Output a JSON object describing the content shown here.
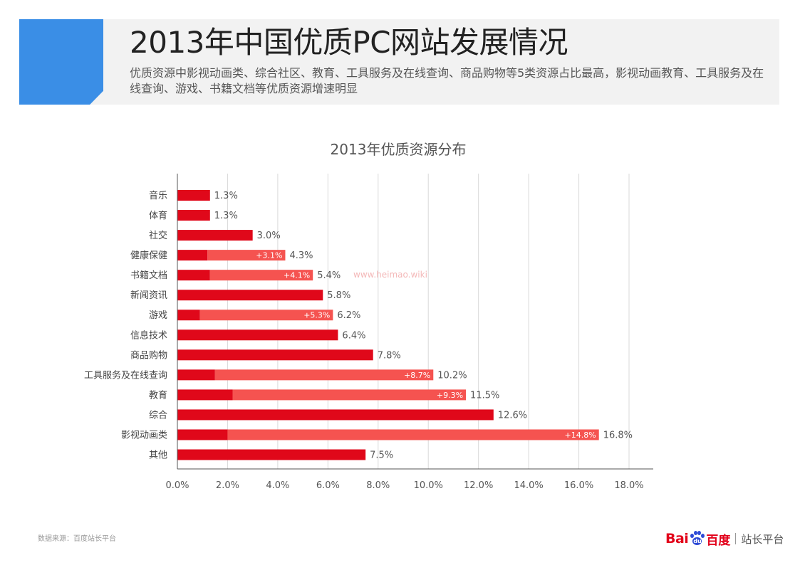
{
  "header": {
    "title": "2013年中国优质PC网站发展情况",
    "subtitle": "优质资源中影视动画类、综合社区、教育、工具服务及在线查询、商品购物等5类资源占比最高，影视动画教育、工具服务及在线查询、游戏、书籍文档等优质资源增速明显"
  },
  "colors": {
    "accent": "#3a8ee6",
    "bar_base": "#e0081a",
    "bar_increase": "#f55350",
    "header_bg": "#f2f2f2"
  },
  "chart_data": {
    "type": "bar",
    "orientation": "horizontal",
    "stacked": true,
    "title": "2013年优质资源分布",
    "xlabel": "",
    "ylabel": "",
    "xlim": [
      0,
      18
    ],
    "x_ticks": [
      "0.0%",
      "2.0%",
      "4.0%",
      "6.0%",
      "8.0%",
      "10.0%",
      "12.0%",
      "14.0%",
      "16.0%",
      "18.0%"
    ],
    "grid": "vertical",
    "legend": "none",
    "categories": [
      "音乐",
      "体育",
      "社交",
      "健康保健",
      "书籍文档",
      "新闻资讯",
      "游戏",
      "信息技术",
      "商品购物",
      "工具服务及在线查询",
      "教育",
      "综合",
      "影视动画类",
      "其他"
    ],
    "totals": [
      1.3,
      1.3,
      3.0,
      4.3,
      5.4,
      5.8,
      6.2,
      6.4,
      7.8,
      10.2,
      11.5,
      12.6,
      16.8,
      7.5
    ],
    "total_labels": [
      "1.3%",
      "1.3%",
      "3.0%",
      "4.3%",
      "5.4%",
      "5.8%",
      "6.2%",
      "6.4%",
      "7.8%",
      "10.2%",
      "11.5%",
      "12.6%",
      "16.8%",
      "7.5%"
    ],
    "increase": [
      null,
      null,
      null,
      3.1,
      4.1,
      null,
      5.3,
      null,
      null,
      8.7,
      9.3,
      null,
      14.8,
      null
    ],
    "increase_labels": [
      null,
      null,
      null,
      "+3.1%",
      "+4.1%",
      null,
      "+5.3%",
      null,
      null,
      "+8.7%",
      "+9.3%",
      null,
      "+14.8%",
      null
    ]
  },
  "watermark": "www.heimao.wiki",
  "footer": {
    "source": "数据来源：百度站长平台",
    "brand_bai": "Bai",
    "brand_du": "du",
    "brand_cn": "百度",
    "brand_product": "站长平台"
  }
}
